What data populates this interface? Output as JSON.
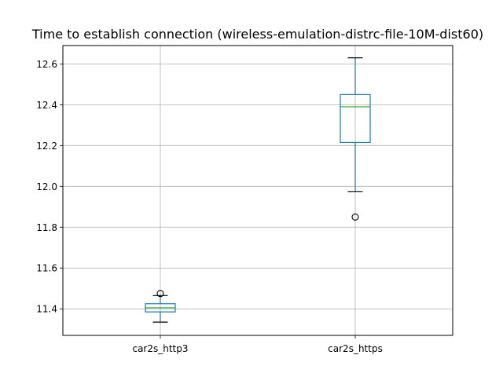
{
  "chart_data": {
    "type": "box",
    "title": "Time to establish connection (wireless-emulation-distrc-file-10M-dist60)",
    "xlabel": "",
    "ylabel": "",
    "categories": [
      "car2s_http3",
      "car2s_https"
    ],
    "ylim": [
      11.27,
      12.69
    ],
    "yticks": [
      11.4,
      11.6,
      11.8,
      12.0,
      12.2,
      12.4,
      12.6
    ],
    "ytick_labels": [
      "11.4",
      "11.6",
      "11.8",
      "12.0",
      "12.2",
      "12.4",
      "12.6"
    ],
    "grid": true,
    "boxes": [
      {
        "name": "car2s_http3",
        "whisker_low": 11.335,
        "q1": 11.385,
        "median": 11.405,
        "q3": 11.425,
        "whisker_high": 11.465,
        "outliers": [
          11.475
        ]
      },
      {
        "name": "car2s_https",
        "whisker_low": 11.975,
        "q1": 12.215,
        "median": 12.39,
        "q3": 12.45,
        "whisker_high": 12.63,
        "outliers": [
          11.85
        ]
      }
    ],
    "colors": {
      "box": "#1f77b4",
      "median": "#2ca02c",
      "grid": "#b0b0b0",
      "axes": "#000000"
    }
  }
}
